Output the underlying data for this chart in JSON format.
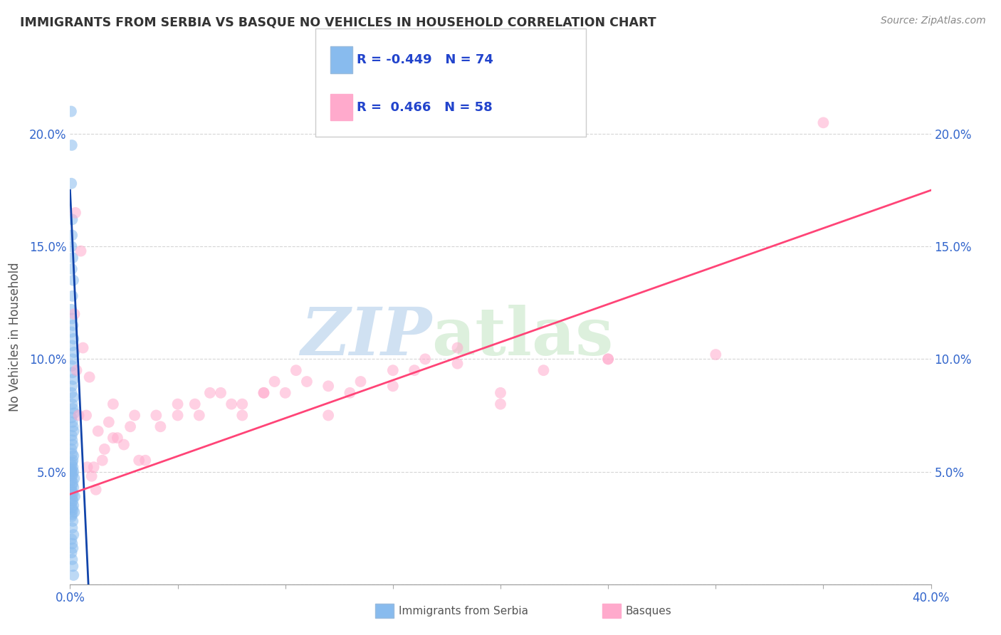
{
  "title": "IMMIGRANTS FROM SERBIA VS BASQUE NO VEHICLES IN HOUSEHOLD CORRELATION CHART",
  "source": "Source: ZipAtlas.com",
  "xlabel_blue": "Immigrants from Serbia",
  "xlabel_pink": "Basques",
  "ylabel": "No Vehicles in Household",
  "xlim": [
    0.0,
    0.4
  ],
  "ylim": [
    0.0,
    0.22
  ],
  "xticks": [
    0.0,
    0.05,
    0.1,
    0.15,
    0.2,
    0.25,
    0.3,
    0.35,
    0.4
  ],
  "yticks": [
    0.0,
    0.05,
    0.1,
    0.15,
    0.2
  ],
  "xtick_labels": [
    "0.0%",
    "",
    "",
    "",
    "",
    "",
    "",
    "",
    "40.0%"
  ],
  "ytick_labels_left": [
    "",
    "5.0%",
    "10.0%",
    "15.0%",
    "20.0%"
  ],
  "ytick_labels_right": [
    "",
    "5.0%",
    "10.0%",
    "15.0%",
    "20.0%"
  ],
  "blue_R": "-0.449",
  "blue_N": "74",
  "pink_R": "0.466",
  "pink_N": "58",
  "blue_color": "#88BBEE",
  "pink_color": "#FFAACC",
  "blue_line_color": "#1144AA",
  "pink_line_color": "#FF4477",
  "watermark_zip": "ZIP",
  "watermark_atlas": "atlas",
  "blue_scatter_x": [
    0.0005,
    0.0008,
    0.0006,
    0.001,
    0.0009,
    0.0007,
    0.0012,
    0.0008,
    0.0015,
    0.0011,
    0.0006,
    0.0009,
    0.0013,
    0.0007,
    0.0016,
    0.001,
    0.0018,
    0.0012,
    0.0008,
    0.0011,
    0.0014,
    0.0009,
    0.0007,
    0.0016,
    0.001,
    0.0013,
    0.0019,
    0.0007,
    0.0011,
    0.0014,
    0.0017,
    0.0008,
    0.001,
    0.0013,
    0.0007,
    0.001,
    0.0016,
    0.0013,
    0.001,
    0.0007,
    0.0013,
    0.0009,
    0.0007,
    0.0016,
    0.0013,
    0.0009,
    0.002,
    0.0007,
    0.0013,
    0.001,
    0.0016,
    0.0007,
    0.001,
    0.0013,
    0.0022,
    0.001,
    0.0013,
    0.0007,
    0.0016,
    0.001,
    0.0013,
    0.002,
    0.001,
    0.0007,
    0.0013,
    0.001,
    0.0016,
    0.0007,
    0.001,
    0.0013,
    0.0007,
    0.001,
    0.0013,
    0.0016
  ],
  "blue_scatter_y": [
    0.21,
    0.195,
    0.178,
    0.162,
    0.155,
    0.15,
    0.145,
    0.14,
    0.135,
    0.128,
    0.122,
    0.118,
    0.115,
    0.112,
    0.109,
    0.106,
    0.103,
    0.1,
    0.097,
    0.094,
    0.091,
    0.088,
    0.085,
    0.083,
    0.08,
    0.078,
    0.076,
    0.074,
    0.072,
    0.07,
    0.068,
    0.066,
    0.064,
    0.062,
    0.06,
    0.058,
    0.057,
    0.055,
    0.054,
    0.053,
    0.052,
    0.051,
    0.05,
    0.05,
    0.049,
    0.048,
    0.047,
    0.046,
    0.045,
    0.044,
    0.043,
    0.042,
    0.041,
    0.04,
    0.039,
    0.038,
    0.037,
    0.036,
    0.035,
    0.034,
    0.033,
    0.032,
    0.031,
    0.03,
    0.028,
    0.025,
    0.022,
    0.02,
    0.018,
    0.016,
    0.014,
    0.011,
    0.008,
    0.004
  ],
  "pink_scatter_x": [
    0.002,
    0.003,
    0.0025,
    0.005,
    0.004,
    0.008,
    0.006,
    0.01,
    0.0075,
    0.012,
    0.009,
    0.015,
    0.011,
    0.018,
    0.013,
    0.02,
    0.016,
    0.025,
    0.02,
    0.03,
    0.022,
    0.035,
    0.028,
    0.04,
    0.032,
    0.05,
    0.042,
    0.06,
    0.05,
    0.07,
    0.058,
    0.08,
    0.065,
    0.09,
    0.075,
    0.1,
    0.08,
    0.11,
    0.09,
    0.12,
    0.095,
    0.13,
    0.105,
    0.15,
    0.12,
    0.16,
    0.135,
    0.18,
    0.15,
    0.2,
    0.165,
    0.22,
    0.18,
    0.25,
    0.2,
    0.3,
    0.25,
    0.35
  ],
  "pink_scatter_y": [
    0.12,
    0.095,
    0.165,
    0.148,
    0.075,
    0.052,
    0.105,
    0.048,
    0.075,
    0.042,
    0.092,
    0.055,
    0.052,
    0.072,
    0.068,
    0.065,
    0.06,
    0.062,
    0.08,
    0.075,
    0.065,
    0.055,
    0.07,
    0.075,
    0.055,
    0.08,
    0.07,
    0.075,
    0.075,
    0.085,
    0.08,
    0.075,
    0.085,
    0.085,
    0.08,
    0.085,
    0.08,
    0.09,
    0.085,
    0.088,
    0.09,
    0.085,
    0.095,
    0.088,
    0.075,
    0.095,
    0.09,
    0.098,
    0.095,
    0.08,
    0.1,
    0.095,
    0.105,
    0.1,
    0.085,
    0.102,
    0.1,
    0.205
  ],
  "blue_line_x": [
    0.0,
    0.0085
  ],
  "blue_line_y": [
    0.175,
    0.0
  ],
  "pink_line_x": [
    0.0,
    0.4
  ],
  "pink_line_y": [
    0.04,
    0.175
  ]
}
